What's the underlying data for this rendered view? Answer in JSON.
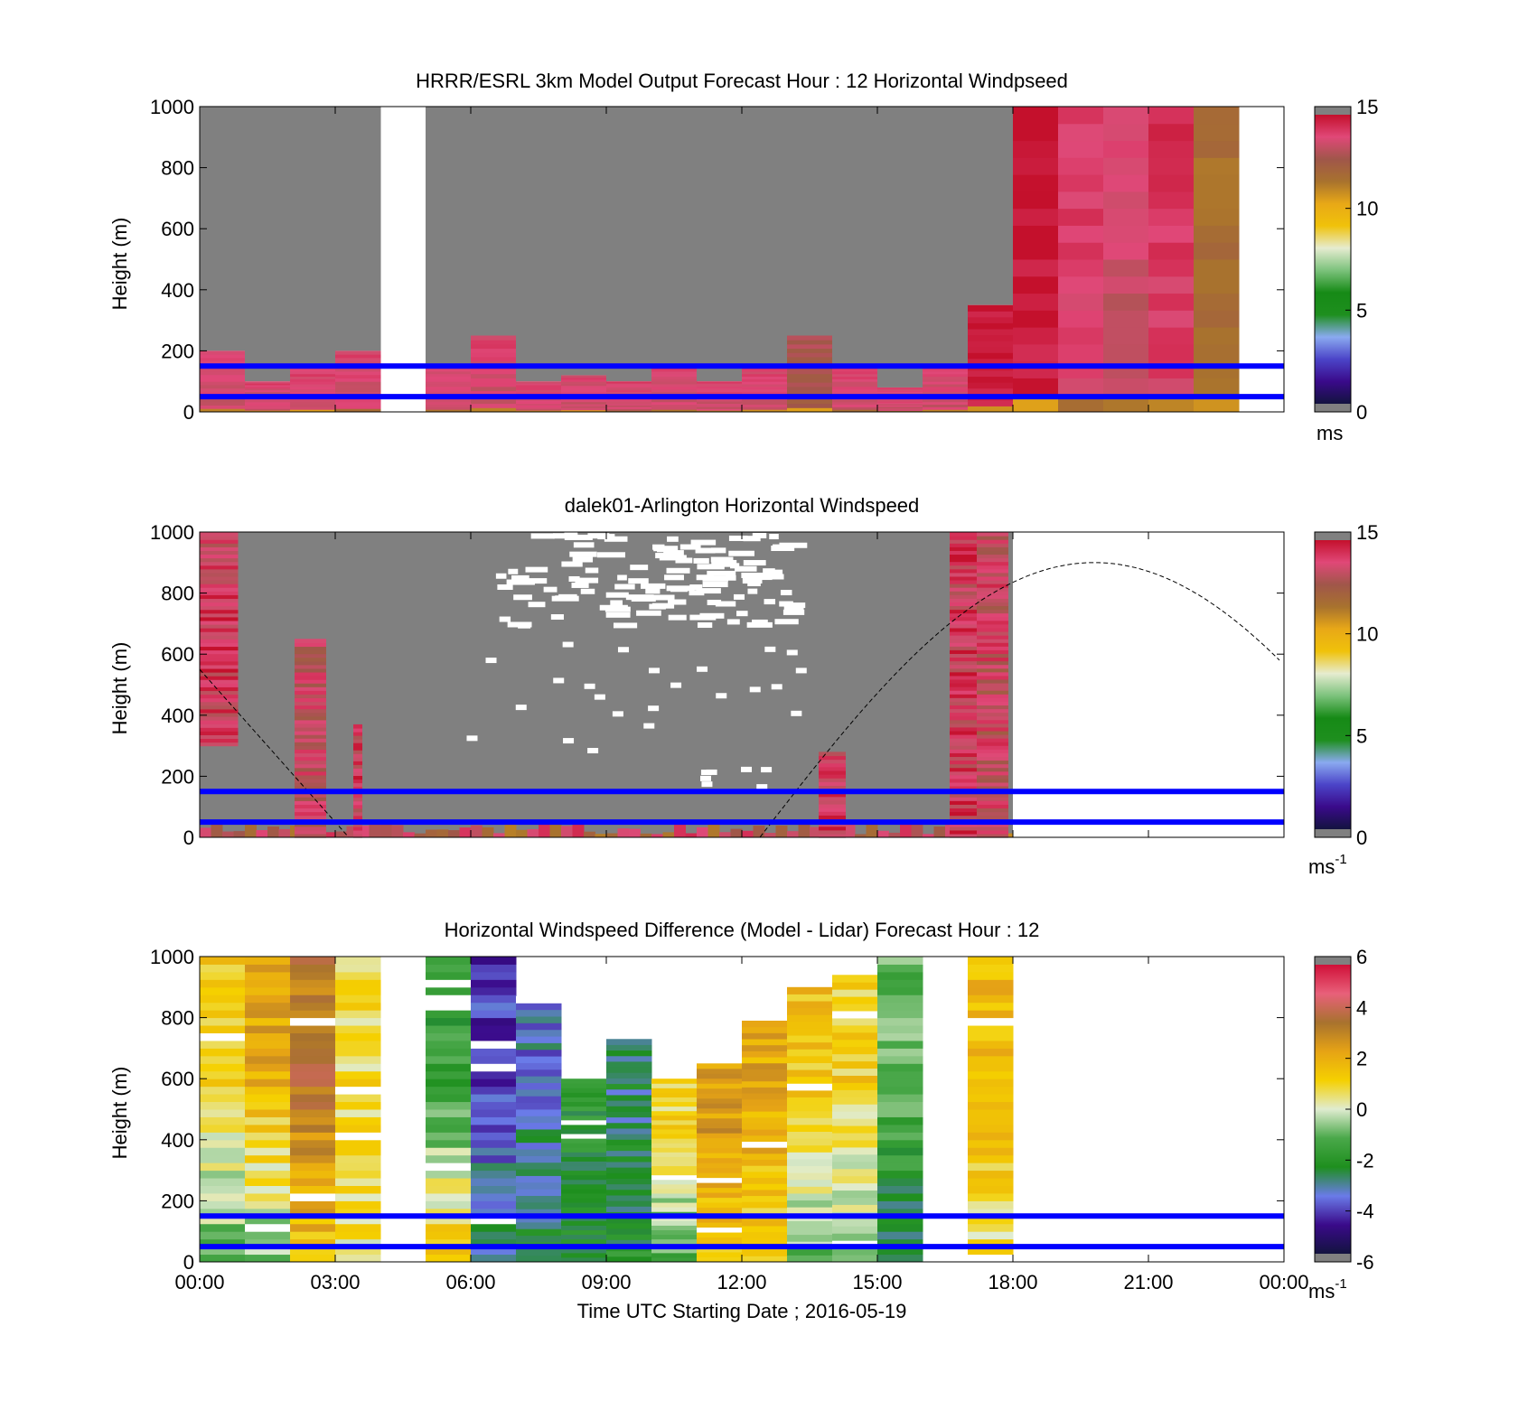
{
  "figure": {
    "xlabel": "Time UTC  Starting Date ; 2016-05-19",
    "x_tick_labels": [
      "00:00",
      "03:00",
      "06:00",
      "09:00",
      "12:00",
      "15:00",
      "18:00",
      "21:00",
      "00:00"
    ]
  },
  "colors": {
    "ref_line": "#0000ff",
    "no_data": "#808080",
    "speed_scale": [
      "#13133f",
      "#3a0a8a",
      "#4b44c8",
      "#8aaaf0",
      "#1e8f1e",
      "#168a16",
      "#7cc27c",
      "#e6ecd0",
      "#f0c20a",
      "#e8a817",
      "#a8722e",
      "#a0564a",
      "#e04878",
      "#c4102c"
    ],
    "diff_scale": [
      "#13133f",
      "#3a0a8a",
      "#6a7be8",
      "#1e8f1e",
      "#4aa84a",
      "#e0ecd0",
      "#f5d000",
      "#e6a315",
      "#a8722e",
      "#e8607a",
      "#d01038"
    ]
  },
  "chart_data": [
    {
      "type": "heatmap",
      "title": "HRRR/ESRL 3km Model Output   Forecast Hour : 12 Horizontal Windpseed",
      "xlabel": "",
      "ylabel": "Height (m)",
      "ylim": [
        0,
        1000
      ],
      "y_ticks": [
        "1000",
        "800",
        "600",
        "400",
        "200",
        "0"
      ],
      "x_range_hours": [
        0,
        24
      ],
      "colorbar": {
        "min": 0,
        "max": 15,
        "ticks": [
          "15",
          "10",
          "5",
          "0"
        ],
        "unit": "ms",
        "unit_sup": ""
      },
      "reference_lines_m": [
        50,
        150
      ],
      "columns": [
        {
          "t": 0,
          "top_m": 200,
          "speed_ms": 13.5
        },
        {
          "t": 1,
          "top_m": 100,
          "speed_ms": 13.5
        },
        {
          "t": 2,
          "top_m": 150,
          "speed_ms": 13.5
        },
        {
          "t": 3,
          "top_m": 200,
          "speed_ms": 13.5
        },
        {
          "t": 5,
          "top_m": 150,
          "speed_ms": 13.5
        },
        {
          "t": 6,
          "top_m": 250,
          "speed_ms": 13.5
        },
        {
          "t": 7,
          "top_m": 100,
          "speed_ms": 13.5
        },
        {
          "t": 8,
          "top_m": 120,
          "speed_ms": 13.5
        },
        {
          "t": 9,
          "top_m": 100,
          "speed_ms": 13.5
        },
        {
          "t": 10,
          "top_m": 150,
          "speed_ms": 13.5
        },
        {
          "t": 11,
          "top_m": 100,
          "speed_ms": 13.5
        },
        {
          "t": 12,
          "top_m": 150,
          "speed_ms": 13.5
        },
        {
          "t": 13,
          "top_m": 250,
          "speed_ms": 12.5
        },
        {
          "t": 14,
          "top_m": 150,
          "speed_ms": 13.5
        },
        {
          "t": 15,
          "top_m": 80,
          "speed_ms": 13.5
        },
        {
          "t": 16,
          "top_m": 150,
          "speed_ms": 13.5
        },
        {
          "t": 17,
          "top_m": 350,
          "speed_ms": 14.5
        },
        {
          "t": 18,
          "top_m": 1000,
          "speed_ms": 14.7
        },
        {
          "t": 19,
          "top_m": 1000,
          "speed_ms": 13.8
        },
        {
          "t": 20,
          "top_m": 1000,
          "speed_ms": 13.3
        },
        {
          "t": 21,
          "top_m": 1000,
          "speed_ms": 13.9
        },
        {
          "t": 22,
          "top_m": 1000,
          "speed_ms": 11.5
        }
      ]
    },
    {
      "type": "heatmap",
      "title": "dalek01-Arlington  Horizontal Windspeed",
      "xlabel": "",
      "ylabel": "Height (m)",
      "ylim": [
        0,
        1000
      ],
      "y_ticks": [
        "1000",
        "800",
        "600",
        "400",
        "200",
        "0"
      ],
      "x_range_hours": [
        0,
        24
      ],
      "colorbar": {
        "min": 0,
        "max": 15,
        "ticks": [
          "15",
          "10",
          "5",
          "0"
        ],
        "unit": "ms",
        "unit_sup": "-1"
      },
      "reference_lines_m": [
        50,
        150
      ],
      "data_range_hours": [
        0,
        18
      ],
      "sun_elevation_curve": "dashed",
      "high_speed_patches": [
        {
          "x0_h": 0.0,
          "x1_h": 0.85,
          "y0_m": 300,
          "y1_m": 1000,
          "speed_ms": 14
        },
        {
          "x0_h": 2.1,
          "x1_h": 2.8,
          "y0_m": 0,
          "y1_m": 650,
          "speed_ms": 13.5
        },
        {
          "x0_h": 3.4,
          "x1_h": 3.6,
          "y0_m": 0,
          "y1_m": 370,
          "speed_ms": 14
        },
        {
          "x0_h": 13.7,
          "x1_h": 14.3,
          "y0_m": 0,
          "y1_m": 280,
          "speed_ms": 14
        },
        {
          "x0_h": 16.6,
          "x1_h": 17.2,
          "y0_m": 0,
          "y1_m": 1000,
          "speed_ms": 14
        },
        {
          "x0_h": 17.2,
          "x1_h": 17.9,
          "y0_m": 0,
          "y1_m": 1000,
          "speed_ms": 13.5
        }
      ]
    },
    {
      "type": "heatmap",
      "title": "Horizontal Windspeed Difference (Model - Lidar) Forecast Hour : 12",
      "xlabel": "Time UTC  Starting Date ; 2016-05-19",
      "ylabel": "Height (m)",
      "ylim": [
        0,
        1000
      ],
      "y_ticks": [
        "1000",
        "800",
        "600",
        "400",
        "200",
        "0"
      ],
      "x_range_hours": [
        0,
        24
      ],
      "colorbar": {
        "min": -6,
        "max": 6,
        "ticks": [
          "6",
          "4",
          "2",
          "0",
          "-2",
          "-4",
          "-6"
        ],
        "unit": "ms",
        "unit_sup": "-1"
      },
      "reference_lines_m": [
        50,
        150
      ],
      "columns": [
        {
          "t": 0,
          "top_m": 1000,
          "upper_diff": 1.2,
          "lower_diff": -1.0
        },
        {
          "t": 1,
          "top_m": 1000,
          "upper_diff": 2.2,
          "lower_diff": -0.8
        },
        {
          "t": 2,
          "top_m": 1000,
          "upper_diff": 3.5,
          "lower_diff": 1.5
        },
        {
          "t": 3,
          "top_m": 1000,
          "upper_diff": 0.8,
          "lower_diff": 0.6
        },
        {
          "t": 5,
          "top_m": 1000,
          "upper_diff": -1.8,
          "lower_diff": 1.5
        },
        {
          "t": 6,
          "top_m": 1000,
          "upper_diff": -4.2,
          "lower_diff": -2.8
        },
        {
          "t": 7,
          "top_m": 870,
          "upper_diff": -3.5,
          "lower_diff": -2.5
        },
        {
          "t": 8,
          "top_m": 600,
          "upper_diff": -2.2,
          "lower_diff": -2.5
        },
        {
          "t": 9,
          "top_m": 730,
          "upper_diff": -2.8,
          "lower_diff": -2.2
        },
        {
          "t": 10,
          "top_m": 600,
          "upper_diff": 1.0,
          "lower_diff": -1.5
        },
        {
          "t": 11,
          "top_m": 650,
          "upper_diff": 2.5,
          "lower_diff": 1.2
        },
        {
          "t": 12,
          "top_m": 790,
          "upper_diff": 2.2,
          "lower_diff": 1.0
        },
        {
          "t": 13,
          "top_m": 900,
          "upper_diff": 1.5,
          "lower_diff": -1.0
        },
        {
          "t": 14,
          "top_m": 940,
          "upper_diff": 1.2,
          "lower_diff": -0.8
        },
        {
          "t": 15,
          "top_m": 1000,
          "upper_diff": -1.0,
          "lower_diff": -2.8
        },
        {
          "t": 17,
          "top_m": 1000,
          "upper_diff": 1.8,
          "lower_diff": 0.6
        }
      ]
    }
  ]
}
